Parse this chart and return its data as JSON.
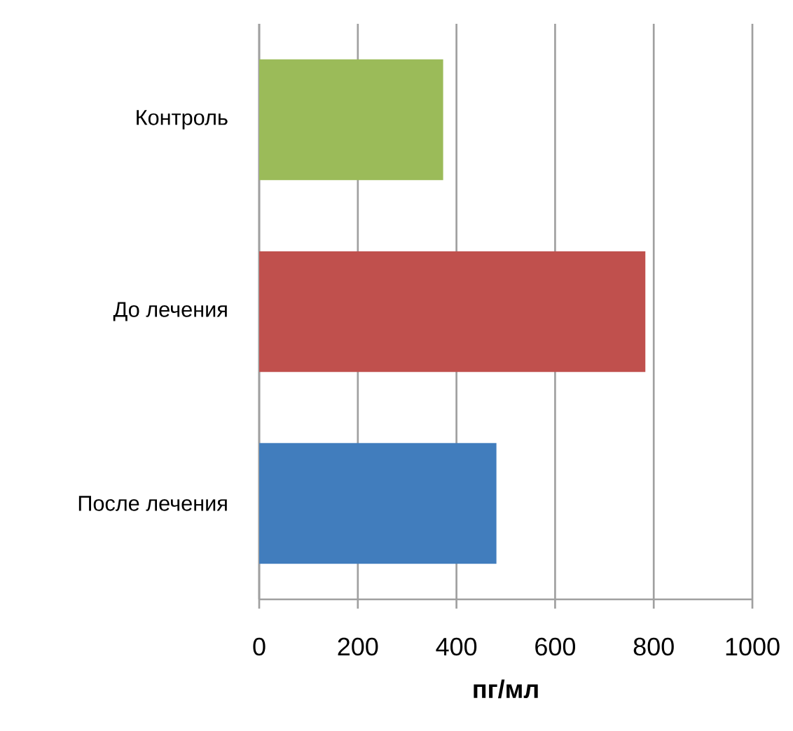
{
  "chart_data": {
    "type": "bar",
    "orientation": "horizontal",
    "xlabel": "пг/мл",
    "categories": [
      "Контроль",
      "До лечения",
      "После лечения"
    ],
    "values": [
      373,
      783,
      481
    ],
    "colors": [
      "#9bbb59",
      "#c0504d",
      "#417dbd"
    ],
    "xlim": [
      0,
      1000
    ],
    "xticks": [
      0,
      200,
      400,
      600,
      800,
      1000
    ],
    "grid": "x"
  }
}
